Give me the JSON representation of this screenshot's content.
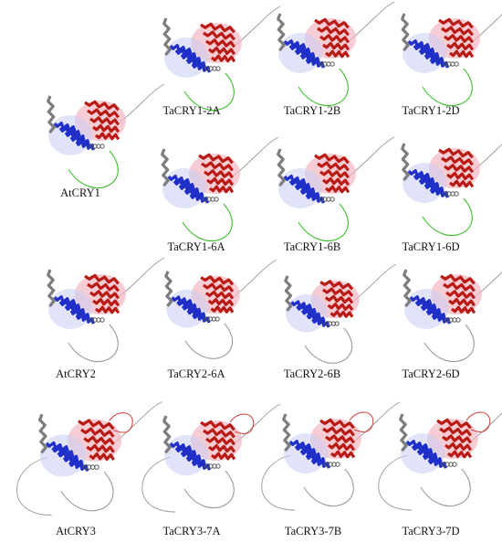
{
  "figure": {
    "colors": {
      "n_domain": "#1f2fc8",
      "c_domain": "#b81a14",
      "c_domain_light": "#f2b8c2",
      "helix_gray": "#7d7d7d",
      "loop_gray": "#9a9a9a",
      "tail_green": "#3cbf2a",
      "loop_red": "#d24a4a"
    },
    "panels": [
      {
        "id": "atcry1",
        "label": "AtCRY1",
        "tail": "green"
      },
      {
        "id": "tacry1-2a",
        "label": "TaCRY1-2A",
        "tail": "green"
      },
      {
        "id": "tacry1-2b",
        "label": "TaCRY1-2B",
        "tail": "green"
      },
      {
        "id": "tacry1-2d",
        "label": "TaCRY1-2D",
        "tail": "green"
      },
      {
        "id": "tacry1-6a",
        "label": "TaCRY1-6A",
        "tail": "green"
      },
      {
        "id": "tacry1-6b",
        "label": "TaCRY1-6B",
        "tail": "green"
      },
      {
        "id": "tacry1-6d",
        "label": "TaCRY1-6D",
        "tail": "green"
      },
      {
        "id": "atcry2",
        "label": "AtCRY2",
        "tail": "gray"
      },
      {
        "id": "tacry2-6a",
        "label": "TaCRY2-6A",
        "tail": "gray"
      },
      {
        "id": "tacry2-6b",
        "label": "TaCRY2-6B",
        "tail": "gray"
      },
      {
        "id": "tacry2-6d",
        "label": "TaCRY2-6D",
        "tail": "gray"
      },
      {
        "id": "atcry3",
        "label": "AtCRY3",
        "tail": "gray3"
      },
      {
        "id": "tacry3-7a",
        "label": "TaCRY3-7A",
        "tail": "gray3"
      },
      {
        "id": "tacry3-7b",
        "label": "TaCRY3-7B",
        "tail": "gray3"
      },
      {
        "id": "tacry3-7d",
        "label": "TaCRY3-7D",
        "tail": "gray3"
      }
    ]
  }
}
